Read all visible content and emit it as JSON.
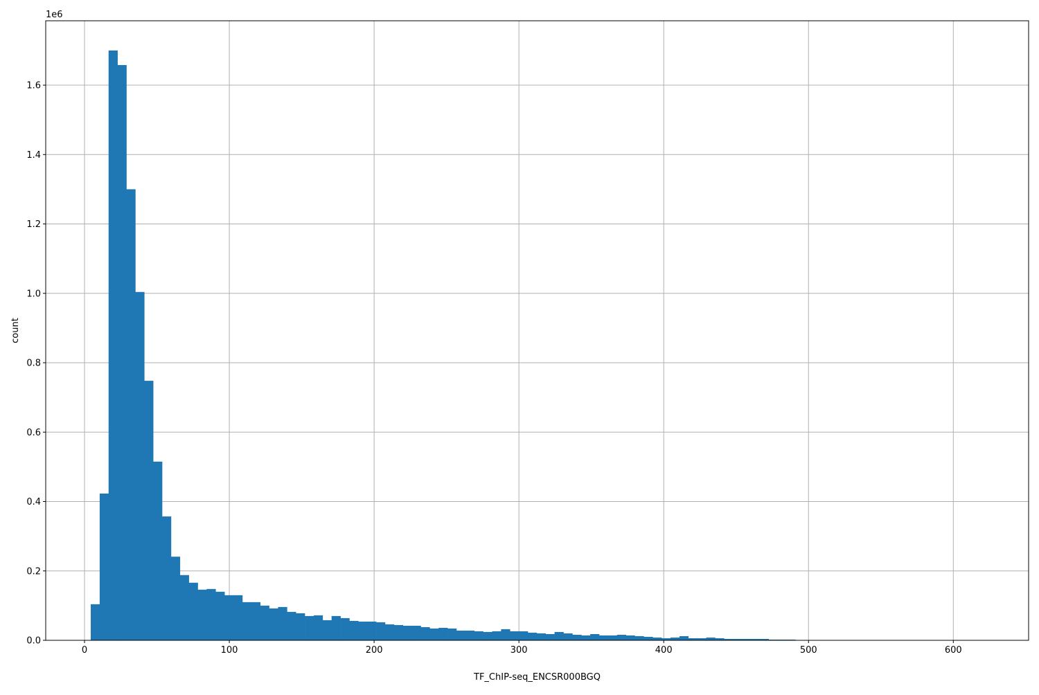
{
  "chart_data": {
    "type": "bar",
    "subtype": "histogram",
    "title": "",
    "xlabel": "TF_ChIP-seq_ENCSR000BGQ",
    "ylabel": "count",
    "y_offset_label": "1e6",
    "xlim": [
      -26.8,
      652
    ],
    "ylim": [
      0,
      1785600
    ],
    "grid": true,
    "bar_color": "#1f77b4",
    "bin_start": 4.3,
    "bin_width": 6.16,
    "x_ticks": [
      0,
      100,
      200,
      300,
      400,
      500,
      600
    ],
    "x_tick_labels": [
      "0",
      "100",
      "200",
      "300",
      "400",
      "500",
      "600"
    ],
    "y_ticks": [
      0,
      200000,
      400000,
      600000,
      800000,
      1000000,
      1200000,
      1400000,
      1600000
    ],
    "y_tick_labels": [
      "0.0",
      "0.2",
      "0.4",
      "0.6",
      "0.8",
      "1.0",
      "1.2",
      "1.4",
      "1.6"
    ],
    "counts_millions": [
      0.104,
      0.423,
      1.7,
      1.658,
      1.3,
      1.004,
      0.748,
      0.515,
      0.357,
      0.241,
      0.188,
      0.166,
      0.146,
      0.148,
      0.14,
      0.13,
      0.13,
      0.11,
      0.11,
      0.1,
      0.092,
      0.096,
      0.082,
      0.078,
      0.07,
      0.072,
      0.058,
      0.07,
      0.064,
      0.056,
      0.054,
      0.054,
      0.052,
      0.046,
      0.044,
      0.042,
      0.042,
      0.038,
      0.034,
      0.036,
      0.034,
      0.028,
      0.028,
      0.026,
      0.024,
      0.026,
      0.032,
      0.026,
      0.026,
      0.022,
      0.02,
      0.018,
      0.024,
      0.02,
      0.016,
      0.014,
      0.018,
      0.014,
      0.014,
      0.016,
      0.014,
      0.012,
      0.01,
      0.008,
      0.006,
      0.008,
      0.012,
      0.006,
      0.006,
      0.008,
      0.006,
      0.004,
      0.004,
      0.004,
      0.004,
      0.004,
      0.002,
      0.002,
      0.002,
      0.0005,
      0.0004,
      0.0003,
      0.0003,
      0.0002,
      0.0002,
      0.0001,
      0.0001,
      0.0001,
      0.0001,
      0.0001,
      0.0001,
      0.0001,
      0,
      0,
      0,
      0,
      0,
      0,
      0,
      0.0001
    ]
  }
}
